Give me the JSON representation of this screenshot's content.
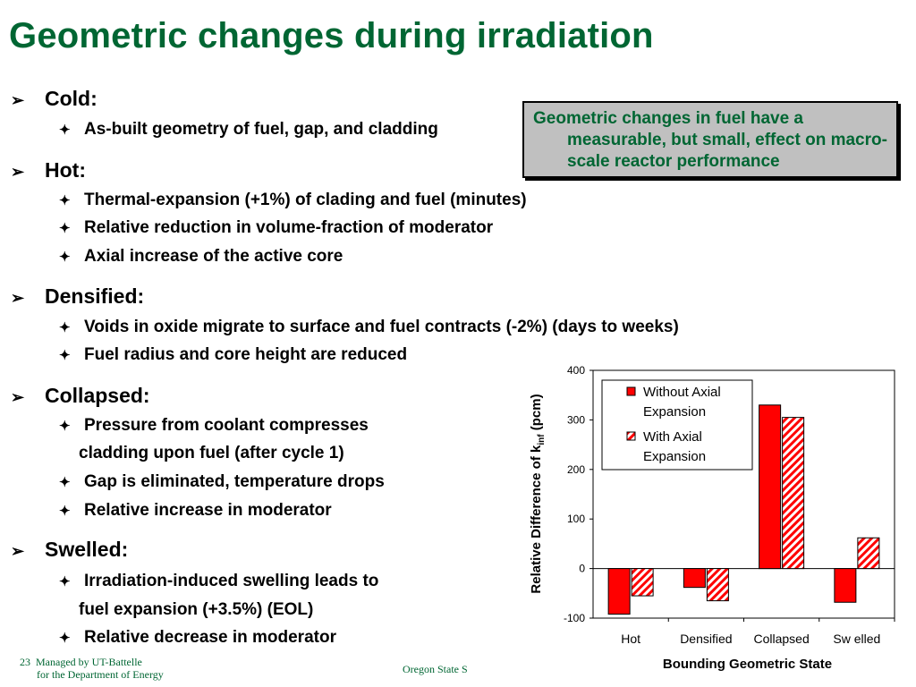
{
  "slide": {
    "title": "Geometric changes during irradiation",
    "sections": [
      {
        "heading": "Cold:",
        "items": [
          "As-built geometry of fuel, gap, and cladding"
        ]
      },
      {
        "heading": "Hot:",
        "items": [
          "Thermal-expansion (+1%) of clading and fuel  (minutes)",
          "Relative reduction in volume-fraction of moderator",
          "Axial increase of the active core"
        ]
      },
      {
        "heading": "Densified:",
        "items": [
          "Voids in oxide migrate to surface and fuel contracts (-2%) (days to weeks)",
          "Fuel radius and core height are reduced"
        ]
      },
      {
        "heading": "Collapsed:",
        "items": [
          "Pressure from coolant compresses",
          "cladding upon fuel (after cycle 1)",
          "Gap is eliminated, temperature drops",
          "Relative increase in moderator"
        ]
      },
      {
        "heading": "Swelled:",
        "items": [
          "Irradiation-induced swelling leads to",
          "fuel expansion (+3.5%) (EOL)",
          "Relative decrease in moderator"
        ]
      }
    ],
    "callout_text": "Geometric changes in fuel have a measurable, but small, effect on macro-scale reactor performance",
    "footer": {
      "page_number": "23",
      "managed_by": "Managed by UT-Battelle",
      "for_doe": "for the Department of Energy",
      "center_text": "Oregon State S"
    },
    "colors": {
      "title": "#006633",
      "bar_fill": "#ff0000",
      "callout_bg": "#c0c0c0"
    }
  },
  "chart_data": {
    "type": "bar",
    "categories": [
      "Hot",
      "Densified",
      "Collapsed",
      "Sw elled"
    ],
    "series": [
      {
        "name": "Without Axial Expansion",
        "values": [
          -92,
          -38,
          330,
          -68
        ],
        "pattern": "solid"
      },
      {
        "name": "With Axial Expansion",
        "values": [
          -55,
          -65,
          305,
          62
        ],
        "pattern": "hatched"
      }
    ],
    "xlabel": "Bounding Geometric State",
    "ylabel_prefix": "Relative Difference of k",
    "ylabel_sub": "inf",
    "ylabel_suffix": " (pcm)",
    "ylim": [
      -100,
      400
    ],
    "yticks": [
      "400",
      "300",
      "200",
      "100",
      "0",
      "-100"
    ],
    "legend": {
      "placement": "top-left",
      "lines": [
        [
          "Without Axial",
          "Expansion"
        ],
        [
          "With Axial",
          "Expansion"
        ]
      ]
    },
    "grid": false
  }
}
